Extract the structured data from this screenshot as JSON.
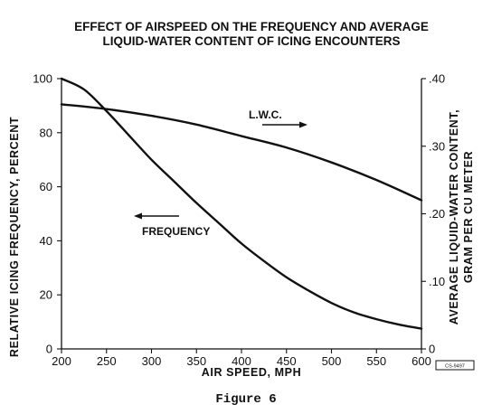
{
  "chart_data": {
    "type": "line",
    "title": "EFFECT OF AIRSPEED ON THE FREQUENCY AND AVERAGE LIQUID-WATER CONTENT OF ICING ENCOUNTERS",
    "title_lines": [
      "EFFECT OF AIRSPEED ON THE FREQUENCY AND AVERAGE",
      "LIQUID-WATER CONTENT OF ICING ENCOUNTERS"
    ],
    "xlabel": "AIR SPEED, MPH",
    "ylabel_left": "RELATIVE ICING FREQUENCY, PERCENT",
    "ylabel_right_lines": [
      "AVERAGE LIQUID-WATER CONTENT,",
      "GRAM PER CU METER"
    ],
    "xlim": [
      200,
      600
    ],
    "ylim_left": [
      0,
      100
    ],
    "ylim_right": [
      0,
      0.4
    ],
    "x_ticks": [
      "200",
      "250",
      "300",
      "350",
      "400",
      "450",
      "500",
      "550",
      "600"
    ],
    "y_left_ticks": [
      "0",
      "20",
      "40",
      "60",
      "80",
      "100"
    ],
    "y_right_ticks": [
      "0",
      ".10",
      ".20",
      ".30",
      ".40"
    ],
    "grid": false,
    "series": [
      {
        "name": "FREQUENCY",
        "axis": "left",
        "x": [
          200,
          225,
          250,
          275,
          300,
          325,
          350,
          375,
          400,
          425,
          450,
          475,
          500,
          525,
          550,
          575,
          600
        ],
        "y": [
          100,
          96,
          88,
          79,
          70,
          62,
          54,
          46.5,
          39,
          32.5,
          26.5,
          21.5,
          17,
          13.5,
          11,
          9,
          7.5
        ]
      },
      {
        "name": "L.W.C.",
        "axis": "right",
        "x": [
          200,
          250,
          300,
          350,
          400,
          450,
          500,
          550,
          600
        ],
        "y": [
          0.362,
          0.355,
          0.345,
          0.332,
          0.315,
          0.298,
          0.276,
          0.25,
          0.22
        ]
      }
    ],
    "annotations": {
      "lwc_label": "L.W.C.",
      "frequency_label": "FREQUENCY"
    },
    "figure_tag": "CS-9497"
  },
  "caption": "Figure 6"
}
